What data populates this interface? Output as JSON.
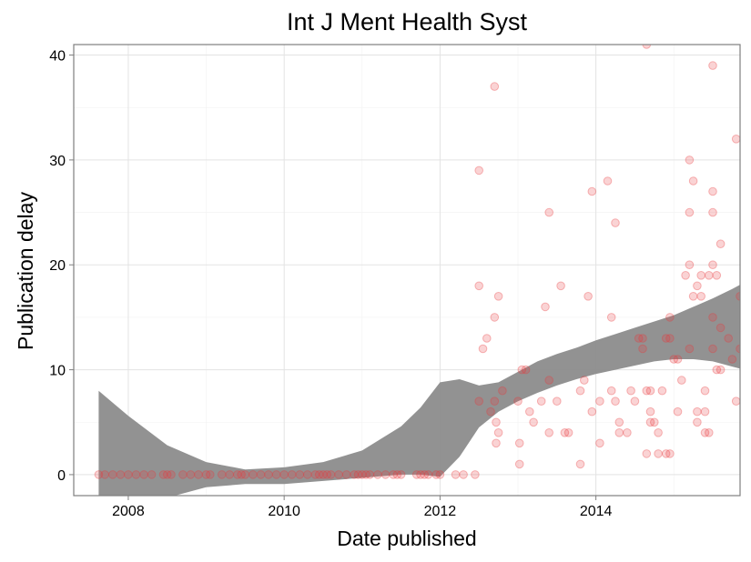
{
  "chart_data": {
    "type": "scatter",
    "title": "Int J Ment Health Syst",
    "xlabel": "Date published",
    "ylabel": "Publication delay",
    "xlim": [
      2007.3,
      2015.85
    ],
    "ylim": [
      -2,
      41
    ],
    "x_ticks": [
      "2008",
      "2010",
      "2012",
      "2014"
    ],
    "y_ticks": [
      "0",
      "10",
      "20",
      "30",
      "40"
    ],
    "grid": true,
    "point_color": "#e8383b",
    "band_color": "#8c8c8c",
    "points": [
      [
        2007.62,
        0
      ],
      [
        2007.7,
        0
      ],
      [
        2007.8,
        0
      ],
      [
        2007.9,
        0
      ],
      [
        2008.0,
        0
      ],
      [
        2008.1,
        0
      ],
      [
        2008.2,
        0
      ],
      [
        2008.3,
        0
      ],
      [
        2008.45,
        0
      ],
      [
        2008.5,
        0
      ],
      [
        2008.55,
        0
      ],
      [
        2008.7,
        0
      ],
      [
        2008.8,
        0
      ],
      [
        2008.9,
        0
      ],
      [
        2009.0,
        0
      ],
      [
        2009.05,
        0
      ],
      [
        2009.2,
        0
      ],
      [
        2009.3,
        0
      ],
      [
        2009.4,
        0
      ],
      [
        2009.45,
        0
      ],
      [
        2009.5,
        0
      ],
      [
        2009.6,
        0
      ],
      [
        2009.7,
        0
      ],
      [
        2009.8,
        0
      ],
      [
        2009.9,
        0
      ],
      [
        2010.0,
        0
      ],
      [
        2010.1,
        0
      ],
      [
        2010.2,
        0
      ],
      [
        2010.3,
        0
      ],
      [
        2010.4,
        0
      ],
      [
        2010.45,
        0
      ],
      [
        2010.5,
        0
      ],
      [
        2010.55,
        0
      ],
      [
        2010.6,
        0
      ],
      [
        2010.7,
        0
      ],
      [
        2010.8,
        0
      ],
      [
        2010.9,
        0
      ],
      [
        2010.95,
        0
      ],
      [
        2011.0,
        0
      ],
      [
        2011.05,
        0
      ],
      [
        2011.1,
        0
      ],
      [
        2011.2,
        0
      ],
      [
        2011.3,
        0
      ],
      [
        2011.4,
        0
      ],
      [
        2011.45,
        0
      ],
      [
        2011.5,
        0
      ],
      [
        2011.7,
        0
      ],
      [
        2011.75,
        0
      ],
      [
        2011.8,
        0
      ],
      [
        2011.85,
        0
      ],
      [
        2011.95,
        0
      ],
      [
        2012.0,
        0
      ],
      [
        2012.2,
        0
      ],
      [
        2012.3,
        0
      ],
      [
        2012.45,
        0
      ],
      [
        2012.5,
        29
      ],
      [
        2012.5,
        18
      ],
      [
        2012.55,
        12
      ],
      [
        2012.6,
        13
      ],
      [
        2012.5,
        7
      ],
      [
        2012.65,
        6
      ],
      [
        2012.7,
        37
      ],
      [
        2012.7,
        15
      ],
      [
        2012.75,
        17
      ],
      [
        2012.7,
        7
      ],
      [
        2012.72,
        5
      ],
      [
        2012.75,
        4
      ],
      [
        2012.72,
        3
      ],
      [
        2012.8,
        8
      ],
      [
        2013.05,
        10
      ],
      [
        2013.1,
        10
      ],
      [
        2013.0,
        7
      ],
      [
        2013.02,
        3
      ],
      [
        2013.02,
        1
      ],
      [
        2013.15,
        6
      ],
      [
        2013.2,
        5
      ],
      [
        2013.3,
        7
      ],
      [
        2013.35,
        16
      ],
      [
        2013.4,
        25
      ],
      [
        2013.4,
        9
      ],
      [
        2013.4,
        4
      ],
      [
        2013.5,
        7
      ],
      [
        2013.55,
        18
      ],
      [
        2013.6,
        4
      ],
      [
        2013.65,
        4
      ],
      [
        2013.8,
        8
      ],
      [
        2013.8,
        1
      ],
      [
        2013.85,
        9
      ],
      [
        2013.9,
        17
      ],
      [
        2013.95,
        6
      ],
      [
        2013.95,
        27
      ],
      [
        2014.05,
        7
      ],
      [
        2014.05,
        3
      ],
      [
        2014.15,
        28
      ],
      [
        2014.2,
        15
      ],
      [
        2014.25,
        24
      ],
      [
        2014.2,
        8
      ],
      [
        2014.25,
        7
      ],
      [
        2014.3,
        5
      ],
      [
        2014.3,
        4
      ],
      [
        2014.4,
        4
      ],
      [
        2014.45,
        8
      ],
      [
        2014.5,
        7
      ],
      [
        2014.55,
        13
      ],
      [
        2014.6,
        13
      ],
      [
        2014.6,
        12
      ],
      [
        2014.65,
        8
      ],
      [
        2014.7,
        8
      ],
      [
        2014.7,
        6
      ],
      [
        2014.65,
        2
      ],
      [
        2014.75,
        5
      ],
      [
        2014.7,
        5
      ],
      [
        2014.8,
        2
      ],
      [
        2014.85,
        8
      ],
      [
        2014.8,
        4
      ],
      [
        2014.9,
        13
      ],
      [
        2014.95,
        13
      ],
      [
        2014.95,
        2
      ],
      [
        2015.0,
        11
      ],
      [
        2014.9,
        2
      ],
      [
        2015.05,
        11
      ],
      [
        2014.65,
        41
      ],
      [
        2014.95,
        15
      ],
      [
        2015.05,
        6
      ],
      [
        2015.1,
        9
      ],
      [
        2015.15,
        19
      ],
      [
        2015.2,
        30
      ],
      [
        2015.2,
        25
      ],
      [
        2015.2,
        12
      ],
      [
        2015.2,
        20
      ],
      [
        2015.25,
        17
      ],
      [
        2015.25,
        28
      ],
      [
        2015.3,
        18
      ],
      [
        2015.3,
        6
      ],
      [
        2015.3,
        5
      ],
      [
        2015.35,
        19
      ],
      [
        2015.35,
        17
      ],
      [
        2015.4,
        8
      ],
      [
        2015.4,
        6
      ],
      [
        2015.4,
        4
      ],
      [
        2015.45,
        4
      ],
      [
        2015.45,
        19
      ],
      [
        2015.5,
        39
      ],
      [
        2015.5,
        27
      ],
      [
        2015.5,
        25
      ],
      [
        2015.5,
        20
      ],
      [
        2015.5,
        15
      ],
      [
        2015.5,
        12
      ],
      [
        2015.55,
        10
      ],
      [
        2015.55,
        19
      ],
      [
        2015.6,
        14
      ],
      [
        2015.6,
        22
      ],
      [
        2015.6,
        10
      ],
      [
        2015.7,
        13
      ],
      [
        2015.75,
        11
      ],
      [
        2015.8,
        32
      ],
      [
        2015.85,
        17
      ],
      [
        2015.85,
        12
      ],
      [
        2015.8,
        7
      ]
    ],
    "smooth_band": {
      "x": [
        2007.62,
        2008.0,
        2008.5,
        2009.0,
        2009.5,
        2010.0,
        2010.5,
        2011.0,
        2011.5,
        2011.75,
        2012.0,
        2012.25,
        2012.5,
        2012.75,
        2013.0,
        2013.25,
        2013.5,
        2013.75,
        2014.0,
        2014.25,
        2014.5,
        2014.75,
        2015.0,
        2015.25,
        2015.5,
        2015.75,
        2015.85
      ],
      "fit": [
        1.6,
        1.0,
        0.3,
        -0.1,
        -0.2,
        -0.1,
        0.3,
        1.0,
        2.3,
        3.2,
        4.3,
        5.4,
        6.5,
        7.4,
        8.4,
        9.3,
        10.0,
        10.6,
        11.2,
        11.7,
        12.2,
        12.7,
        13.1,
        13.5,
        13.8,
        14.0,
        14.1
      ],
      "lower": [
        -4.8,
        -3.6,
        -2.2,
        -1.2,
        -0.9,
        -0.9,
        -0.6,
        -0.3,
        0.0,
        0.0,
        -0.2,
        1.7,
        4.5,
        6.0,
        7.0,
        7.8,
        8.5,
        9.1,
        9.6,
        10.0,
        10.4,
        10.8,
        11.0,
        11.0,
        10.8,
        10.3,
        10.1
      ],
      "upper": [
        8.0,
        5.6,
        2.8,
        1.2,
        0.5,
        0.7,
        1.2,
        2.3,
        4.6,
        6.4,
        8.8,
        9.1,
        8.5,
        8.8,
        9.8,
        10.8,
        11.5,
        12.1,
        12.8,
        13.4,
        14.0,
        14.6,
        15.2,
        16.0,
        16.8,
        17.7,
        18.1
      ]
    }
  }
}
